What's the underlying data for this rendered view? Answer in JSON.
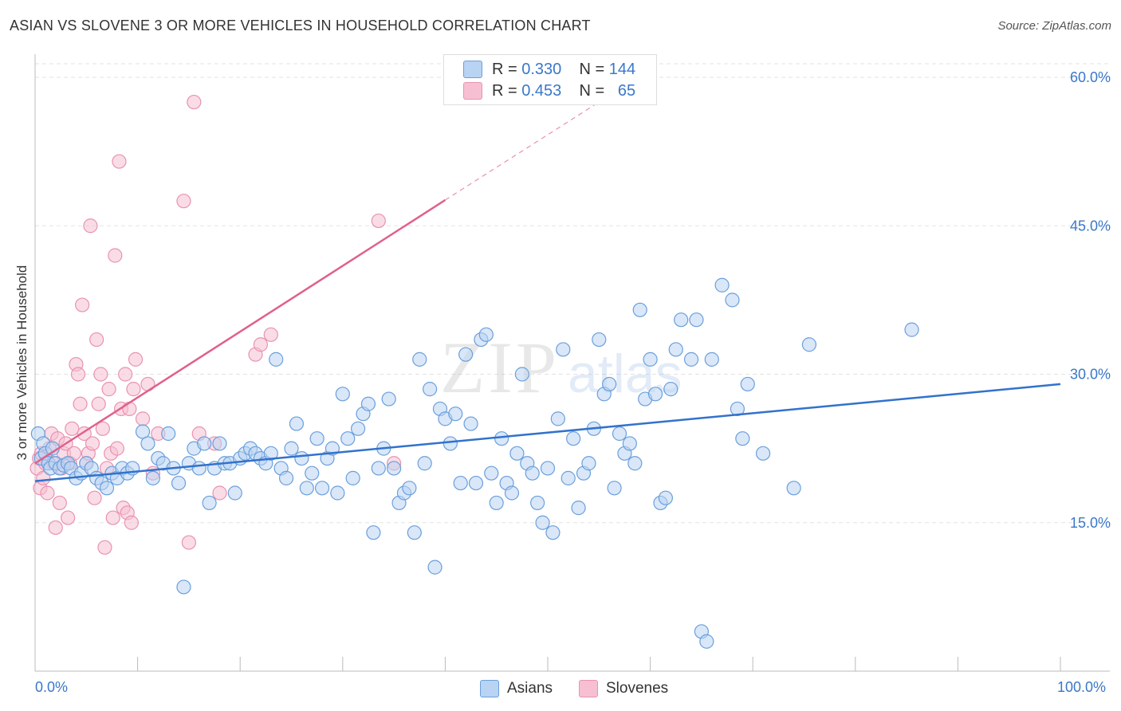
{
  "header": {
    "title": "ASIAN VS SLOVENE 3 OR MORE VEHICLES IN HOUSEHOLD CORRELATION CHART",
    "source": "Source: ZipAtlas.com"
  },
  "legend": {
    "rows": [
      {
        "r_label": "R =",
        "r_value": "0.330",
        "n_label": "N =",
        "n_value": "144"
      },
      {
        "r_label": "R =",
        "r_value": "0.453",
        "n_label": "N =",
        "n_value": "65"
      }
    ]
  },
  "bottom_legend": {
    "asians": "Asians",
    "slovenes": "Slovenes"
  },
  "watermark": {
    "zip": "ZIP",
    "atlas": "atlas"
  },
  "colors": {
    "asians_fill": "#b9d3f3",
    "asians_stroke": "#6a9fdc",
    "asians_line": "#3272cc",
    "slovenes_fill": "#f6c0d2",
    "slovenes_stroke": "#e893b0",
    "slovenes_line": "#e0608c",
    "axis_text": "#3a78c9",
    "grid": "#e3e3e3"
  },
  "chart_data": {
    "type": "scatter",
    "title": "ASIAN VS SLOVENE 3 OR MORE VEHICLES IN HOUSEHOLD CORRELATION CHART",
    "xlabel": "",
    "ylabel": "3 or more Vehicles in Household",
    "xlim": [
      0,
      100
    ],
    "ylim": [
      0,
      60
    ],
    "x_tick_labels": [
      "0.0%",
      "100.0%"
    ],
    "y_ticks": [
      15,
      30,
      45,
      60
    ],
    "y_tick_labels": [
      "15.0%",
      "30.0%",
      "45.0%",
      "60.0%"
    ],
    "grid": true,
    "legend_position": "top-center",
    "series": [
      {
        "name": "Asians",
        "R": 0.33,
        "N": 144,
        "trend": {
          "x": [
            0,
            100
          ],
          "y": [
            19.2,
            29.0
          ]
        },
        "points": [
          [
            0.3,
            24.0
          ],
          [
            0.6,
            21.5
          ],
          [
            0.8,
            23.0
          ],
          [
            1.0,
            22.0
          ],
          [
            1.3,
            21.0
          ],
          [
            1.5,
            20.5
          ],
          [
            1.7,
            22.5
          ],
          [
            2.0,
            21.0
          ],
          [
            2.4,
            20.5
          ],
          [
            2.8,
            20.8
          ],
          [
            3.2,
            21.0
          ],
          [
            3.5,
            20.5
          ],
          [
            4.0,
            19.5
          ],
          [
            4.5,
            20.0
          ],
          [
            5.0,
            21.0
          ],
          [
            5.5,
            20.5
          ],
          [
            6.0,
            19.5
          ],
          [
            6.5,
            19.0
          ],
          [
            7.0,
            18.5
          ],
          [
            7.5,
            20.0
          ],
          [
            8.0,
            19.5
          ],
          [
            8.5,
            20.5
          ],
          [
            9.0,
            20.0
          ],
          [
            9.5,
            20.5
          ],
          [
            10.5,
            24.2
          ],
          [
            11.0,
            23.0
          ],
          [
            11.5,
            19.5
          ],
          [
            12.0,
            21.5
          ],
          [
            12.5,
            21.0
          ],
          [
            13.0,
            24.0
          ],
          [
            13.5,
            20.5
          ],
          [
            14.0,
            19.0
          ],
          [
            14.5,
            8.5
          ],
          [
            15.0,
            21.0
          ],
          [
            15.5,
            22.5
          ],
          [
            16.0,
            20.5
          ],
          [
            16.5,
            23.0
          ],
          [
            17.0,
            17.0
          ],
          [
            17.5,
            20.5
          ],
          [
            18.0,
            23.0
          ],
          [
            18.5,
            21.0
          ],
          [
            19.0,
            21.0
          ],
          [
            19.5,
            18.0
          ],
          [
            20.0,
            21.5
          ],
          [
            20.5,
            22.0
          ],
          [
            21.0,
            22.5
          ],
          [
            21.5,
            22.0
          ],
          [
            22.0,
            21.5
          ],
          [
            22.5,
            21.0
          ],
          [
            23.0,
            22.0
          ],
          [
            23.5,
            31.5
          ],
          [
            24.0,
            20.5
          ],
          [
            24.5,
            19.5
          ],
          [
            25.0,
            22.5
          ],
          [
            25.5,
            25.0
          ],
          [
            26.0,
            21.5
          ],
          [
            26.5,
            18.5
          ],
          [
            27.0,
            20.0
          ],
          [
            27.5,
            23.5
          ],
          [
            28.0,
            18.5
          ],
          [
            28.5,
            21.5
          ],
          [
            29.0,
            22.5
          ],
          [
            29.5,
            18.0
          ],
          [
            30.0,
            28.0
          ],
          [
            30.5,
            23.5
          ],
          [
            31.0,
            19.5
          ],
          [
            31.5,
            24.5
          ],
          [
            32.0,
            26.0
          ],
          [
            32.5,
            27.0
          ],
          [
            33.0,
            14.0
          ],
          [
            33.5,
            20.5
          ],
          [
            34.0,
            22.5
          ],
          [
            34.5,
            27.5
          ],
          [
            35.0,
            20.5
          ],
          [
            35.5,
            17.0
          ],
          [
            36.0,
            18.0
          ],
          [
            36.5,
            18.5
          ],
          [
            37.0,
            14.0
          ],
          [
            37.5,
            31.5
          ],
          [
            38.0,
            21.0
          ],
          [
            38.5,
            28.5
          ],
          [
            39.0,
            10.5
          ],
          [
            39.5,
            26.5
          ],
          [
            40.0,
            25.5
          ],
          [
            40.5,
            23.0
          ],
          [
            41.0,
            26.0
          ],
          [
            41.5,
            19.0
          ],
          [
            42.0,
            32.0
          ],
          [
            42.5,
            25.0
          ],
          [
            43.0,
            19.0
          ],
          [
            43.5,
            33.5
          ],
          [
            44.0,
            34.0
          ],
          [
            44.5,
            20.0
          ],
          [
            45.0,
            17.0
          ],
          [
            45.5,
            23.5
          ],
          [
            46.0,
            19.0
          ],
          [
            46.5,
            18.0
          ],
          [
            47.0,
            22.0
          ],
          [
            47.5,
            30.0
          ],
          [
            48.0,
            21.0
          ],
          [
            48.5,
            20.0
          ],
          [
            49.0,
            17.0
          ],
          [
            49.5,
            15.0
          ],
          [
            50.0,
            20.5
          ],
          [
            50.5,
            14.0
          ],
          [
            51.0,
            25.5
          ],
          [
            51.5,
            32.5
          ],
          [
            52.0,
            19.5
          ],
          [
            52.5,
            23.5
          ],
          [
            53.0,
            16.5
          ],
          [
            53.5,
            20.0
          ],
          [
            54.0,
            21.0
          ],
          [
            54.5,
            24.5
          ],
          [
            55.0,
            33.5
          ],
          [
            55.5,
            28.0
          ],
          [
            56.0,
            29.0
          ],
          [
            56.5,
            18.5
          ],
          [
            57.0,
            24.0
          ],
          [
            57.5,
            22.0
          ],
          [
            58.0,
            23.0
          ],
          [
            58.5,
            21.0
          ],
          [
            59.0,
            36.5
          ],
          [
            59.5,
            27.5
          ],
          [
            60.0,
            31.5
          ],
          [
            60.5,
            28.0
          ],
          [
            61.0,
            17.0
          ],
          [
            61.5,
            17.5
          ],
          [
            62.0,
            28.5
          ],
          [
            62.5,
            32.5
          ],
          [
            63.0,
            35.5
          ],
          [
            64.0,
            31.5
          ],
          [
            64.5,
            35.5
          ],
          [
            65.0,
            4.0
          ],
          [
            65.5,
            3.0
          ],
          [
            66.0,
            31.5
          ],
          [
            67.0,
            39.0
          ],
          [
            68.0,
            37.5
          ],
          [
            68.5,
            26.5
          ],
          [
            69.0,
            23.5
          ],
          [
            69.5,
            29.0
          ],
          [
            71.0,
            22.0
          ],
          [
            74.0,
            18.5
          ],
          [
            75.5,
            33.0
          ],
          [
            85.5,
            34.5
          ]
        ]
      },
      {
        "name": "Slovenes",
        "R": 0.453,
        "N": 65,
        "trend": {
          "x": [
            0,
            40
          ],
          "y": [
            21.0,
            47.6
          ],
          "extrapolated_to": [
            55,
            57.5
          ]
        },
        "points": [
          [
            0.2,
            20.5
          ],
          [
            0.4,
            21.5
          ],
          [
            0.5,
            18.5
          ],
          [
            0.6,
            22.0
          ],
          [
            0.8,
            19.5
          ],
          [
            1.0,
            21.0
          ],
          [
            1.2,
            18.0
          ],
          [
            1.4,
            22.5
          ],
          [
            1.6,
            24.0
          ],
          [
            1.8,
            21.0
          ],
          [
            2.0,
            14.5
          ],
          [
            2.2,
            23.5
          ],
          [
            2.4,
            17.0
          ],
          [
            2.6,
            20.5
          ],
          [
            2.8,
            22.0
          ],
          [
            3.0,
            23.0
          ],
          [
            3.2,
            15.5
          ],
          [
            3.4,
            21.0
          ],
          [
            3.6,
            24.5
          ],
          [
            3.8,
            22.0
          ],
          [
            4.0,
            31.0
          ],
          [
            4.2,
            30.0
          ],
          [
            4.4,
            27.0
          ],
          [
            4.6,
            37.0
          ],
          [
            4.8,
            24.0
          ],
          [
            5.0,
            21.0
          ],
          [
            5.2,
            22.0
          ],
          [
            5.4,
            45.0
          ],
          [
            5.6,
            23.0
          ],
          [
            5.8,
            17.5
          ],
          [
            6.0,
            33.5
          ],
          [
            6.2,
            27.0
          ],
          [
            6.4,
            30.0
          ],
          [
            6.6,
            24.5
          ],
          [
            6.8,
            12.5
          ],
          [
            7.0,
            20.5
          ],
          [
            7.2,
            28.5
          ],
          [
            7.4,
            22.0
          ],
          [
            7.6,
            15.5
          ],
          [
            7.8,
            42.0
          ],
          [
            8.0,
            22.5
          ],
          [
            8.2,
            51.5
          ],
          [
            8.4,
            26.5
          ],
          [
            8.6,
            16.5
          ],
          [
            8.8,
            30.0
          ],
          [
            9.0,
            16.0
          ],
          [
            9.2,
            26.5
          ],
          [
            9.4,
            15.0
          ],
          [
            9.6,
            28.5
          ],
          [
            9.8,
            31.5
          ],
          [
            10.5,
            25.5
          ],
          [
            11.0,
            29.0
          ],
          [
            11.5,
            20.0
          ],
          [
            12.0,
            24.0
          ],
          [
            14.5,
            47.5
          ],
          [
            15.0,
            13.0
          ],
          [
            15.5,
            57.5
          ],
          [
            16.0,
            24.0
          ],
          [
            17.5,
            23.0
          ],
          [
            18.0,
            18.0
          ],
          [
            21.5,
            32.0
          ],
          [
            22.0,
            33.0
          ],
          [
            23.0,
            34.0
          ],
          [
            33.5,
            45.5
          ],
          [
            35.0,
            21.0
          ]
        ]
      }
    ]
  }
}
